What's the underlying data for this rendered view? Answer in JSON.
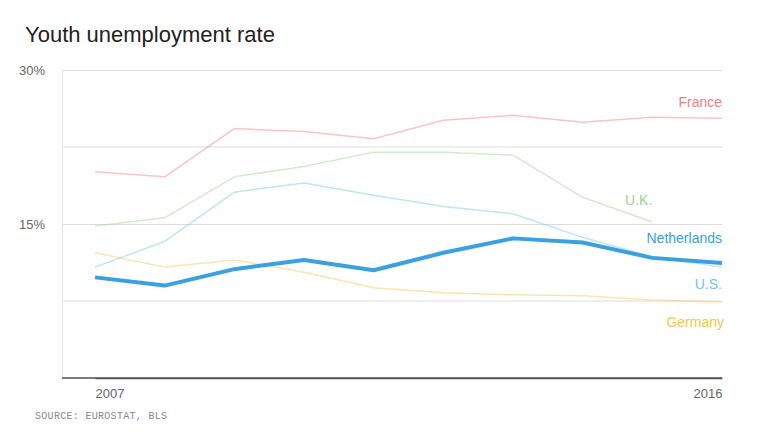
{
  "chart_data": {
    "type": "line",
    "title": "Youth unemployment rate",
    "source": "SOURCE: EUROSTAT, BLS",
    "x": [
      2007,
      2008,
      2009,
      2010,
      2011,
      2012,
      2013,
      2014,
      2015,
      2016
    ],
    "xlim": [
      2007,
      2016
    ],
    "xticks": [
      2007,
      2016
    ],
    "ylim": [
      0,
      30
    ],
    "yticks": [
      {
        "value": 15,
        "label": "15%"
      },
      {
        "value": 30,
        "label": "30%"
      }
    ],
    "grid": true,
    "series": [
      {
        "name": "France",
        "color": "#f07f7f",
        "line_style": "thin",
        "values": [
          20.1,
          19.6,
          24.3,
          24.0,
          23.3,
          25.1,
          25.6,
          24.9,
          25.4,
          25.3
        ]
      },
      {
        "name": "U.K.",
        "color": "#9dd092",
        "line_style": "thin",
        "values": [
          14.8,
          15.6,
          19.6,
          20.6,
          22.0,
          22.0,
          21.7,
          17.6,
          15.2,
          null
        ]
      },
      {
        "name": "U.S.",
        "color": "#6cc8dc",
        "line_style": "thin",
        "values": [
          10.8,
          13.3,
          18.1,
          19.0,
          17.8,
          16.7,
          16.0,
          13.7,
          11.8,
          10.8
        ]
      },
      {
        "name": "Germany",
        "color": "#f5c452",
        "line_style": "thin",
        "values": [
          12.2,
          10.8,
          11.5,
          10.3,
          8.8,
          8.3,
          8.1,
          8.0,
          7.6,
          7.4
        ]
      },
      {
        "name": "Netherlands",
        "color": "#3aa0e0",
        "line_style": "thick",
        "values": [
          9.8,
          9.0,
          10.6,
          11.5,
          10.5,
          12.2,
          13.6,
          13.2,
          11.7,
          11.2
        ]
      }
    ]
  }
}
